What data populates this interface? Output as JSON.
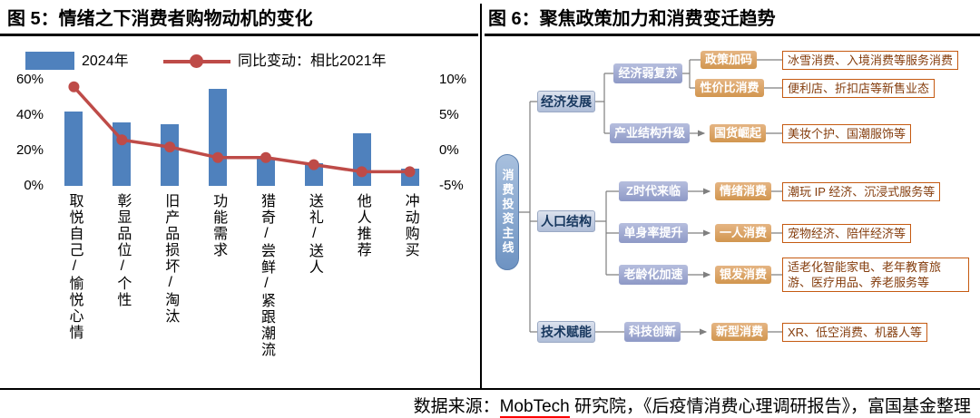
{
  "header": {
    "left_title": "图 5：情绪之下消费者购物动机的变化",
    "right_title": "图 6：聚焦政策加力和消费变迁趋势"
  },
  "chart_data": {
    "type": "bar",
    "title": "图 5：情绪之下消费者购物动机的变化",
    "categories": [
      "取悦自己/愉悦心情",
      "彰显品位/个性",
      "旧产品损坏/淘汰",
      "功能需求",
      "猎奇/尝鲜/紧跟潮流",
      "送礼/送人",
      "他人推荐",
      "冲动购买"
    ],
    "series": [
      {
        "name": "2024年",
        "type": "bar",
        "axis": "left",
        "values": [
          42,
          36,
          35,
          55,
          16,
          13,
          30,
          10
        ]
      },
      {
        "name": "同比变动：相比2021年",
        "type": "line",
        "axis": "right",
        "values": [
          9,
          1.5,
          0.5,
          -1,
          -1,
          -2,
          -3,
          -3
        ]
      }
    ],
    "left_axis": {
      "min": 0,
      "max": 60,
      "ticks": [
        0,
        20,
        40,
        60
      ],
      "format": "percent"
    },
    "right_axis": {
      "min": -5,
      "max": 10,
      "ticks": [
        -5,
        0,
        5,
        10
      ],
      "format": "percent"
    },
    "grid": false,
    "legend_position": "top"
  },
  "tree": {
    "root": "消费投资主线",
    "level1": [
      "经济发展",
      "人口结构",
      "技术赋能"
    ],
    "level2": [
      "经济弱复苏",
      "产业结构升级",
      "Z时代来临",
      "单身率提升",
      "老龄化加速",
      "科技创新"
    ],
    "level3": [
      "政策加码",
      "性价比消费",
      "国货崛起",
      "情绪消费",
      "一人消费",
      "银发消费",
      "新型消费"
    ],
    "leaves": [
      "冰雪消费、入境消费等服务消费",
      "便利店、折扣店等新售业态",
      "美妆个护、国潮服饰等",
      "潮玩 IP 经济、沉浸式服务等",
      "宠物经济、陪伴经济等",
      "适老化智能家电、老年教育旅游、医疗用品、养老服务等",
      "XR、低空消费、机器人等"
    ]
  },
  "footer": {
    "prefix": "数据来源：",
    "mobtech": "MobTech",
    "suffix": " 研究院，《后疫情消费心理调研报告》，富国基金整理"
  },
  "colors": {
    "bar": "#4F81BD",
    "line": "#BE4B48",
    "tree_level1_bg": "#BFCAE0",
    "tree_level1_text": "#17375E",
    "tree_level2_bg": "#9AA5CE",
    "tree_level3_bg": "#DCA164",
    "leaf_border": "#C55A11",
    "leaf_text": "#843C0C",
    "connector": "#7F7F7F",
    "root_bg": "#7A9CC8"
  }
}
